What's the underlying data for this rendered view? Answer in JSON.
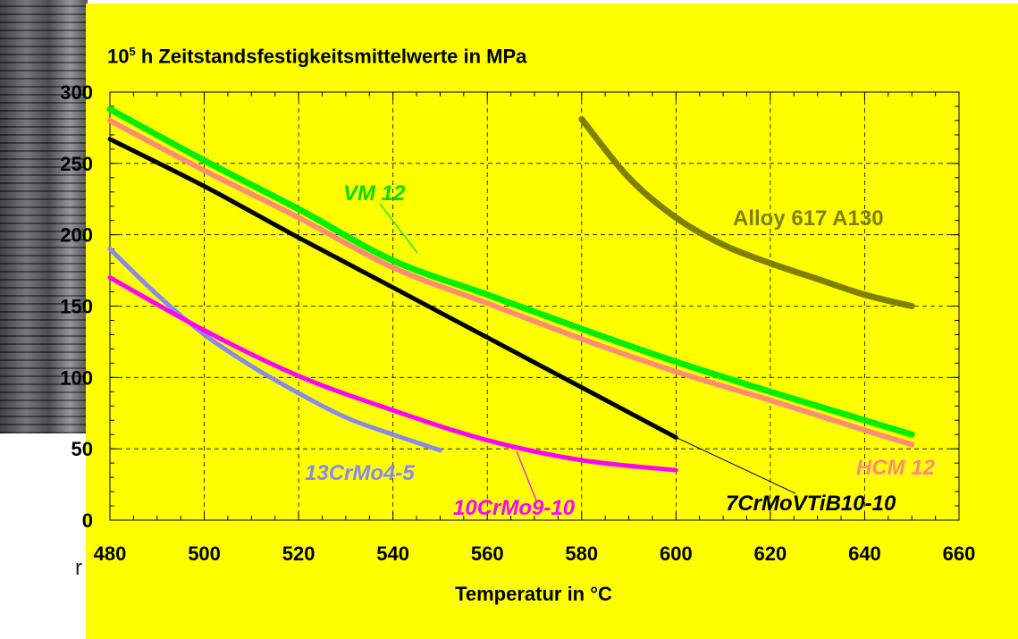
{
  "chart_data": {
    "type": "line",
    "title": "Zeitstandsfestigkeitsmittelwerte in MPa",
    "title_prefix": "10",
    "title_superscript": "5",
    "title_unit": "h",
    "xlabel": "Temperatur in °C",
    "ylabel": "",
    "xlim": [
      480,
      660
    ],
    "ylim": [
      0,
      300
    ],
    "x_ticks": [
      480,
      500,
      520,
      540,
      560,
      580,
      600,
      620,
      640,
      660
    ],
    "y_ticks": [
      0,
      50,
      100,
      150,
      200,
      250,
      300
    ],
    "grid": true,
    "legend": "inline labels",
    "series": [
      {
        "name": "VM 12",
        "color": "#00ee00",
        "x": [
          480,
          500,
          520,
          540,
          560,
          580,
          600,
          620,
          640,
          650
        ],
        "y": [
          288,
          252,
          218,
          182,
          158,
          134,
          111,
          90,
          70,
          60
        ]
      },
      {
        "name": "HCM 12",
        "color": "#ff8c78",
        "x": [
          480,
          500,
          520,
          540,
          560,
          580,
          600,
          620,
          640,
          650
        ],
        "y": [
          280,
          245,
          212,
          177,
          152,
          127,
          104,
          84,
          63,
          53
        ]
      },
      {
        "name": "7CrMoVTiB10-10",
        "color": "#000000",
        "x": [
          480,
          500,
          520,
          540,
          560,
          580,
          600
        ],
        "y": [
          267,
          234,
          198,
          163,
          128,
          93,
          58
        ]
      },
      {
        "name": "13CrMo4-5",
        "color": "#8888ee",
        "x": [
          480,
          490,
          500,
          510,
          520,
          530,
          540,
          550
        ],
        "y": [
          190,
          158,
          130,
          108,
          89,
          72,
          60,
          49
        ]
      },
      {
        "name": "10CrMo9-10",
        "color": "#ff00ff",
        "x": [
          480,
          500,
          520,
          540,
          560,
          580,
          600
        ],
        "y": [
          170,
          133,
          101,
          77,
          56,
          42,
          35
        ]
      },
      {
        "name": "Alloy 617 A130",
        "color": "#808000",
        "x": [
          580,
          590,
          600,
          610,
          620,
          630,
          640,
          650
        ],
        "y": [
          281,
          240,
          212,
          193,
          180,
          169,
          158,
          150
        ]
      }
    ]
  },
  "labels": {
    "vm12": "VM 12",
    "hcm12": "HCM 12",
    "crmovtib": "7CrMoVTiB10-10",
    "crmo45": "13CrMo4-5",
    "crmo910": "10CrMo9-10",
    "alloy617": "Alloy 617 A130"
  },
  "background": {
    "panel_color": "#ffff00",
    "stray_text": "r"
  }
}
